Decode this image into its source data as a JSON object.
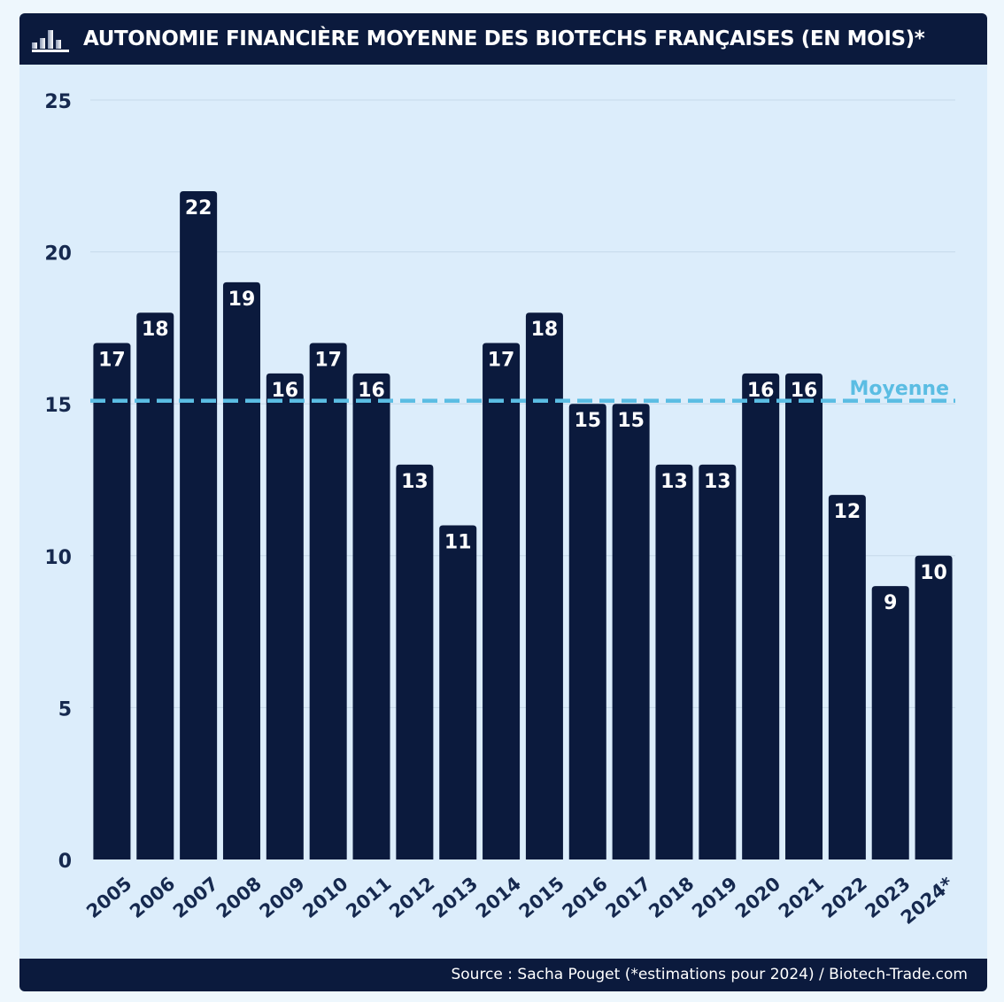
{
  "header": {
    "title": "AUTONOMIE FINANCIÈRE MOYENNE DES BIOTECHS FRANÇAISES (EN MOIS)*",
    "icon": "bar-chart-icon"
  },
  "footer": {
    "source": "Source : Sacha Pouget (*estimations pour 2024) / Biotech-Trade.com"
  },
  "colors": {
    "background": "#eef7fd",
    "header": "#0b1a3d",
    "panel": "#dcedfb",
    "bar": "#0b1a3d",
    "average_line": "#5bbde3",
    "axis_text": "#16294f"
  },
  "chart_data": {
    "type": "bar",
    "title": "AUTONOMIE FINANCIÈRE MOYENNE DES BIOTECHS FRANÇAISES (EN MOIS)*",
    "categories": [
      "2005",
      "2006",
      "2007",
      "2008",
      "2009",
      "2010",
      "2011",
      "2012",
      "2013",
      "2014",
      "2015",
      "2016",
      "2017",
      "2018",
      "2019",
      "2020",
      "2021",
      "2022",
      "2023",
      "2024*"
    ],
    "values": [
      17,
      18,
      22,
      19,
      16,
      17,
      16,
      13,
      11,
      17,
      18,
      15,
      15,
      13,
      13,
      16,
      16,
      12,
      9,
      10
    ],
    "data_labels": [
      "17",
      "18",
      "22",
      "19",
      "16",
      "17",
      "16",
      "13",
      "11",
      "17",
      "18",
      "15",
      "15",
      "13",
      "13",
      "16",
      "16",
      "12",
      "9",
      "10"
    ],
    "ylim": [
      0,
      25
    ],
    "yticks": [
      0,
      5,
      10,
      15,
      20,
      25
    ],
    "ytick_labels": [
      "0",
      "5",
      "10",
      "15",
      "20",
      "25"
    ],
    "grid": true,
    "average_line": {
      "label": "Moyenne",
      "value": 15.1,
      "style": "dashed"
    },
    "xlabel": "",
    "ylabel": ""
  }
}
